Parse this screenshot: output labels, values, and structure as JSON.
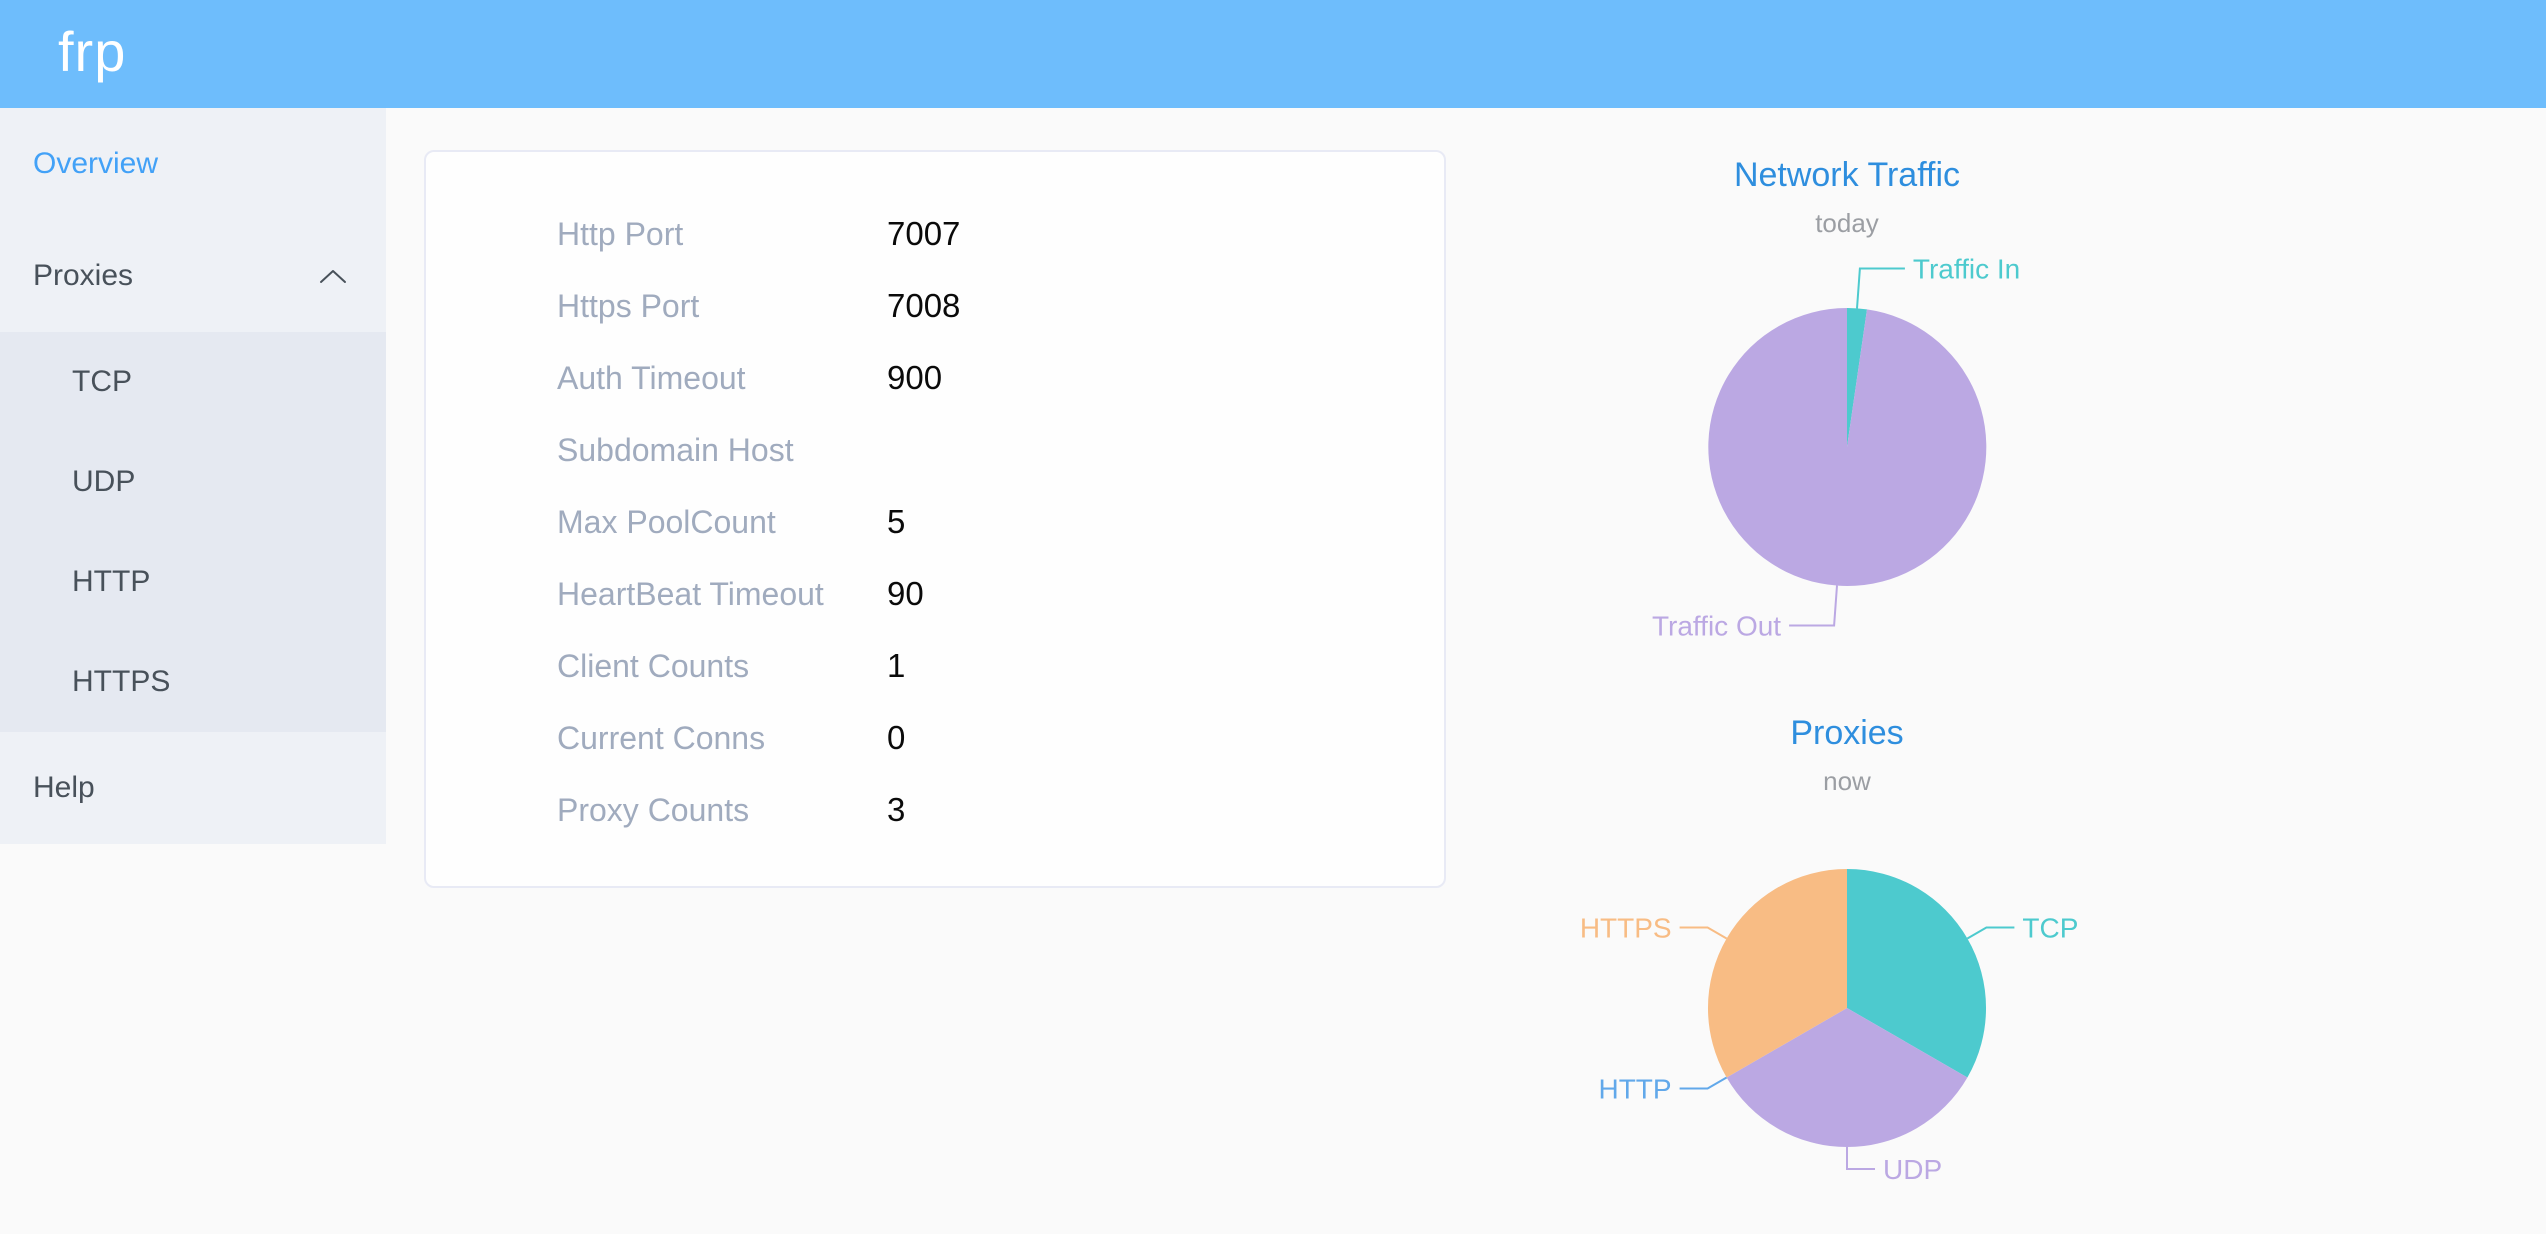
{
  "header": {
    "logo": "frp"
  },
  "sidebar": {
    "items": [
      {
        "label": "Overview",
        "active": true
      },
      {
        "label": "Proxies",
        "expanded": true,
        "children": [
          "TCP",
          "UDP",
          "HTTP",
          "HTTPS"
        ]
      },
      {
        "label": "Help"
      }
    ]
  },
  "overview_card": {
    "rows": [
      {
        "label": "Http Port",
        "value": "7007"
      },
      {
        "label": "Https Port",
        "value": "7008"
      },
      {
        "label": "Auth Timeout",
        "value": "900"
      },
      {
        "label": "Subdomain Host",
        "value": ""
      },
      {
        "label": "Max PoolCount",
        "value": "5"
      },
      {
        "label": "HeartBeat Timeout",
        "value": "90"
      },
      {
        "label": "Client Counts",
        "value": "1"
      },
      {
        "label": "Current Conns",
        "value": "0"
      },
      {
        "label": "Proxy Counts",
        "value": "3"
      }
    ]
  },
  "chart_data": [
    {
      "type": "pie",
      "title": "Network Traffic",
      "subtitle": "today",
      "legend_position": "none",
      "labels": "outside",
      "values_unit": "percent of total, estimated from arc angles",
      "slices": [
        {
          "name": "Traffic In",
          "value": 2.3,
          "color": "#4dcace"
        },
        {
          "name": "Traffic Out",
          "value": 97.7,
          "color": "#bba8e3"
        }
      ]
    },
    {
      "type": "pie",
      "title": "Proxies",
      "subtitle": "now",
      "legend_position": "none",
      "labels": "outside",
      "values_unit": "proxy count",
      "slices": [
        {
          "name": "TCP",
          "value": 1,
          "color": "#4dcace"
        },
        {
          "name": "UDP",
          "value": 1,
          "color": "#bba8e3"
        },
        {
          "name": "HTTP",
          "value": 0,
          "color": "#61a8ea"
        },
        {
          "name": "HTTPS",
          "value": 1,
          "color": "#f8bc84"
        }
      ]
    }
  ],
  "colors": {
    "header_bg": "#6ebdfc",
    "sidebar_bg": "#eef1f6",
    "submenu_bg": "#e5e9f1",
    "active_link": "#42a1f7",
    "menu_text": "#48515a",
    "card_label": "#a0abbe",
    "card_value": "#0a0a0a",
    "chart_title": "#2e8ede",
    "chart_subtitle": "#9b9ea3",
    "palette": [
      "#4dcace",
      "#bba8e3",
      "#61a8ea",
      "#f8bc84"
    ]
  }
}
